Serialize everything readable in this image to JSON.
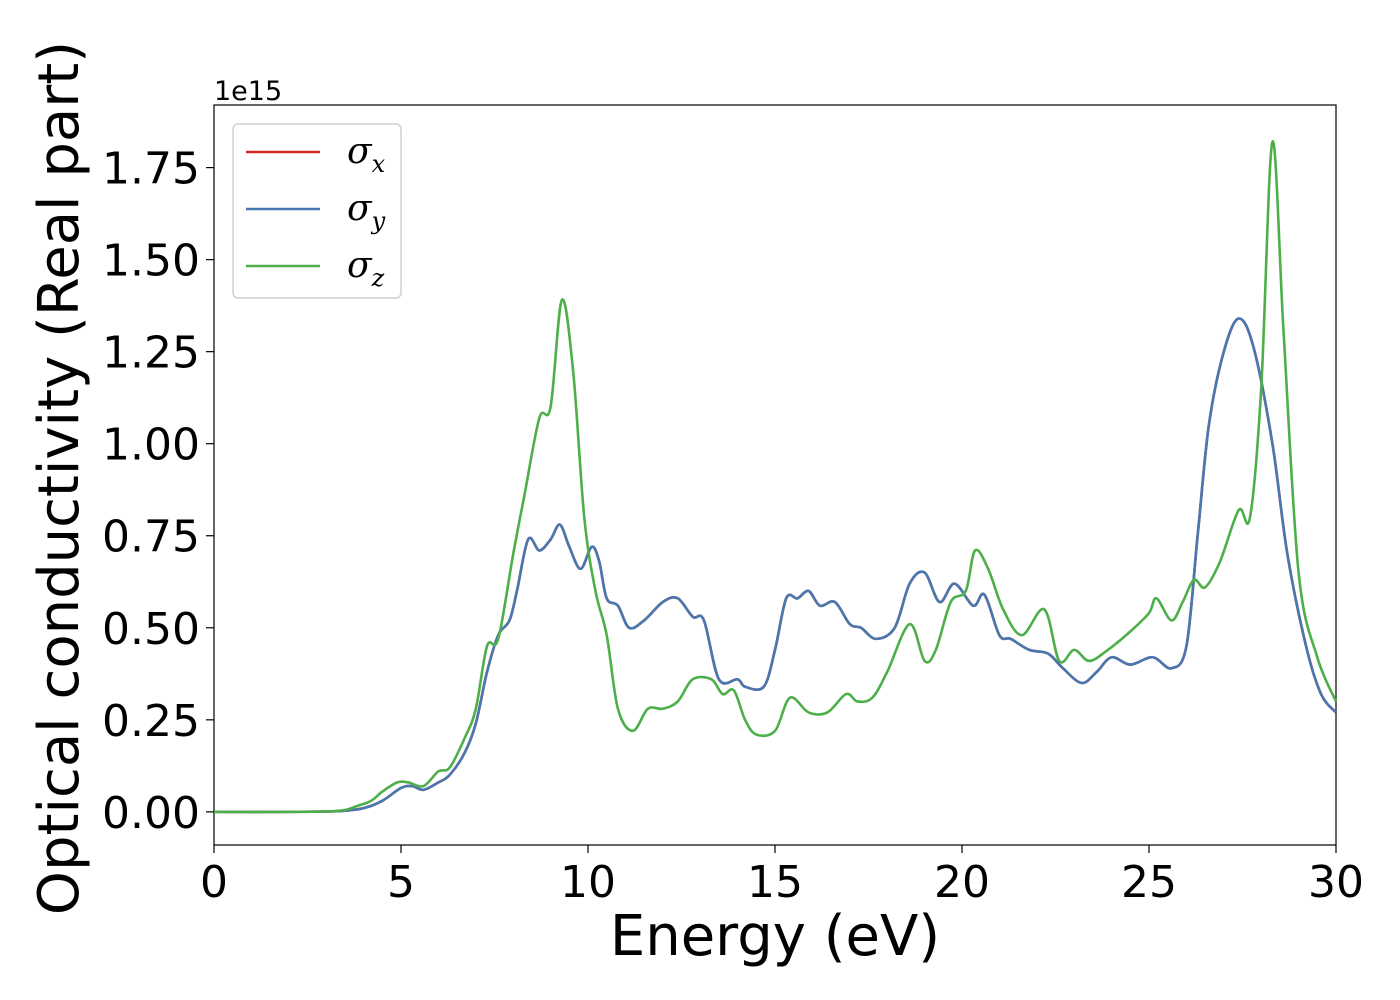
{
  "chart_data": {
    "type": "line",
    "xlabel": "Energy (eV)",
    "ylabel": "Optical conductivity (Real part)",
    "offset_text": "1e15",
    "xlim": [
      0,
      30
    ],
    "ylim": [
      -0.09,
      1.92
    ],
    "y_scale_factor": 1000000000000000.0,
    "x_ticks": [
      0,
      5,
      10,
      15,
      20,
      25,
      30
    ],
    "x_tick_labels": [
      "0",
      "5",
      "10",
      "15",
      "20",
      "25",
      "30"
    ],
    "y_ticks": [
      0.0,
      0.25,
      0.5,
      0.75,
      1.0,
      1.25,
      1.5,
      1.75
    ],
    "y_tick_labels": [
      "0.00",
      "0.25",
      "0.50",
      "0.75",
      "1.00",
      "1.25",
      "1.50",
      "1.75"
    ],
    "grid": false,
    "legend_position": "top-left",
    "legend": [
      {
        "symbol": "σ",
        "subscript": "x",
        "color": "#d62728"
      },
      {
        "symbol": "σ",
        "subscript": "y",
        "color": "#4878b0"
      },
      {
        "symbol": "σ",
        "subscript": "z",
        "color": "#4daf4a"
      }
    ],
    "series": [
      {
        "key": "sigma_x",
        "color": "#d62728",
        "points": [
          [
            0,
            0
          ],
          [
            2,
            0
          ],
          [
            3,
            0.001
          ],
          [
            3.5,
            0.003
          ],
          [
            4,
            0.01
          ],
          [
            4.5,
            0.03
          ],
          [
            5,
            0.065
          ],
          [
            5.3,
            0.07
          ],
          [
            5.6,
            0.06
          ],
          [
            6,
            0.08
          ],
          [
            6.3,
            0.1
          ],
          [
            6.7,
            0.16
          ],
          [
            7,
            0.24
          ],
          [
            7.3,
            0.38
          ],
          [
            7.6,
            0.48
          ],
          [
            7.9,
            0.52
          ],
          [
            8.1,
            0.6
          ],
          [
            8.4,
            0.74
          ],
          [
            8.7,
            0.71
          ],
          [
            9,
            0.74
          ],
          [
            9.25,
            0.78
          ],
          [
            9.5,
            0.72
          ],
          [
            9.8,
            0.66
          ],
          [
            10.1,
            0.72
          ],
          [
            10.3,
            0.68
          ],
          [
            10.5,
            0.58
          ],
          [
            10.8,
            0.56
          ],
          [
            11.1,
            0.5
          ],
          [
            11.5,
            0.52
          ],
          [
            12,
            0.57
          ],
          [
            12.4,
            0.58
          ],
          [
            12.8,
            0.53
          ],
          [
            13.1,
            0.52
          ],
          [
            13.5,
            0.36
          ],
          [
            14,
            0.36
          ],
          [
            14.2,
            0.34
          ],
          [
            14.7,
            0.34
          ],
          [
            15,
            0.44
          ],
          [
            15.3,
            0.58
          ],
          [
            15.6,
            0.58
          ],
          [
            15.9,
            0.6
          ],
          [
            16.2,
            0.56
          ],
          [
            16.6,
            0.57
          ],
          [
            17,
            0.51
          ],
          [
            17.3,
            0.5
          ],
          [
            17.7,
            0.47
          ],
          [
            18.2,
            0.5
          ],
          [
            18.6,
            0.62
          ],
          [
            19,
            0.65
          ],
          [
            19.4,
            0.57
          ],
          [
            19.8,
            0.62
          ],
          [
            20.3,
            0.56
          ],
          [
            20.6,
            0.59
          ],
          [
            21,
            0.48
          ],
          [
            21.3,
            0.47
          ],
          [
            21.8,
            0.44
          ],
          [
            22.3,
            0.43
          ],
          [
            22.7,
            0.39
          ],
          [
            23.2,
            0.35
          ],
          [
            23.6,
            0.38
          ],
          [
            24,
            0.42
          ],
          [
            24.5,
            0.4
          ],
          [
            25.1,
            0.42
          ],
          [
            25.6,
            0.39
          ],
          [
            26,
            0.45
          ],
          [
            26.3,
            0.75
          ],
          [
            26.6,
            1.05
          ],
          [
            27,
            1.25
          ],
          [
            27.4,
            1.34
          ],
          [
            27.8,
            1.26
          ],
          [
            28.3,
            1.0
          ],
          [
            28.7,
            0.7
          ],
          [
            29.2,
            0.45
          ],
          [
            29.6,
            0.32
          ],
          [
            30,
            0.27
          ]
        ]
      },
      {
        "key": "sigma_y",
        "color": "#4878b0",
        "points": [
          [
            0,
            0
          ],
          [
            2,
            0
          ],
          [
            3,
            0.001
          ],
          [
            3.5,
            0.003
          ],
          [
            4,
            0.01
          ],
          [
            4.5,
            0.03
          ],
          [
            5,
            0.065
          ],
          [
            5.3,
            0.07
          ],
          [
            5.6,
            0.06
          ],
          [
            6,
            0.08
          ],
          [
            6.3,
            0.1
          ],
          [
            6.7,
            0.16
          ],
          [
            7,
            0.24
          ],
          [
            7.3,
            0.38
          ],
          [
            7.6,
            0.48
          ],
          [
            7.9,
            0.52
          ],
          [
            8.1,
            0.6
          ],
          [
            8.4,
            0.74
          ],
          [
            8.7,
            0.71
          ],
          [
            9,
            0.74
          ],
          [
            9.25,
            0.78
          ],
          [
            9.5,
            0.72
          ],
          [
            9.8,
            0.66
          ],
          [
            10.1,
            0.72
          ],
          [
            10.3,
            0.68
          ],
          [
            10.5,
            0.58
          ],
          [
            10.8,
            0.56
          ],
          [
            11.1,
            0.5
          ],
          [
            11.5,
            0.52
          ],
          [
            12,
            0.57
          ],
          [
            12.4,
            0.58
          ],
          [
            12.8,
            0.53
          ],
          [
            13.1,
            0.52
          ],
          [
            13.5,
            0.36
          ],
          [
            14,
            0.36
          ],
          [
            14.2,
            0.34
          ],
          [
            14.7,
            0.34
          ],
          [
            15,
            0.44
          ],
          [
            15.3,
            0.58
          ],
          [
            15.6,
            0.58
          ],
          [
            15.9,
            0.6
          ],
          [
            16.2,
            0.56
          ],
          [
            16.6,
            0.57
          ],
          [
            17,
            0.51
          ],
          [
            17.3,
            0.5
          ],
          [
            17.7,
            0.47
          ],
          [
            18.2,
            0.5
          ],
          [
            18.6,
            0.62
          ],
          [
            19,
            0.65
          ],
          [
            19.4,
            0.57
          ],
          [
            19.8,
            0.62
          ],
          [
            20.3,
            0.56
          ],
          [
            20.6,
            0.59
          ],
          [
            21,
            0.48
          ],
          [
            21.3,
            0.47
          ],
          [
            21.8,
            0.44
          ],
          [
            22.3,
            0.43
          ],
          [
            22.7,
            0.39
          ],
          [
            23.2,
            0.35
          ],
          [
            23.6,
            0.38
          ],
          [
            24,
            0.42
          ],
          [
            24.5,
            0.4
          ],
          [
            25.1,
            0.42
          ],
          [
            25.6,
            0.39
          ],
          [
            26,
            0.45
          ],
          [
            26.3,
            0.75
          ],
          [
            26.6,
            1.05
          ],
          [
            27,
            1.25
          ],
          [
            27.4,
            1.34
          ],
          [
            27.8,
            1.26
          ],
          [
            28.3,
            1.0
          ],
          [
            28.7,
            0.7
          ],
          [
            29.2,
            0.45
          ],
          [
            29.6,
            0.32
          ],
          [
            30,
            0.27
          ]
        ]
      },
      {
        "key": "sigma_z",
        "color": "#4daf4a",
        "points": [
          [
            0,
            0
          ],
          [
            2,
            0
          ],
          [
            3,
            0.001
          ],
          [
            3.5,
            0.005
          ],
          [
            3.8,
            0.015
          ],
          [
            4.2,
            0.03
          ],
          [
            4.5,
            0.055
          ],
          [
            4.9,
            0.08
          ],
          [
            5.2,
            0.08
          ],
          [
            5.6,
            0.07
          ],
          [
            6,
            0.11
          ],
          [
            6.3,
            0.12
          ],
          [
            6.7,
            0.2
          ],
          [
            7,
            0.28
          ],
          [
            7.3,
            0.45
          ],
          [
            7.6,
            0.47
          ],
          [
            8,
            0.7
          ],
          [
            8.3,
            0.86
          ],
          [
            8.7,
            1.07
          ],
          [
            9,
            1.1
          ],
          [
            9.3,
            1.39
          ],
          [
            9.6,
            1.2
          ],
          [
            9.9,
            0.8
          ],
          [
            10.2,
            0.6
          ],
          [
            10.5,
            0.48
          ],
          [
            10.8,
            0.28
          ],
          [
            11.2,
            0.22
          ],
          [
            11.6,
            0.28
          ],
          [
            12,
            0.28
          ],
          [
            12.4,
            0.3
          ],
          [
            12.8,
            0.36
          ],
          [
            13.3,
            0.36
          ],
          [
            13.6,
            0.32
          ],
          [
            13.9,
            0.33
          ],
          [
            14.2,
            0.25
          ],
          [
            14.5,
            0.21
          ],
          [
            15,
            0.22
          ],
          [
            15.4,
            0.31
          ],
          [
            15.9,
            0.27
          ],
          [
            16.4,
            0.27
          ],
          [
            16.9,
            0.32
          ],
          [
            17.2,
            0.3
          ],
          [
            17.6,
            0.31
          ],
          [
            18,
            0.38
          ],
          [
            18.6,
            0.51
          ],
          [
            19,
            0.41
          ],
          [
            19.3,
            0.44
          ],
          [
            19.7,
            0.57
          ],
          [
            20.1,
            0.6
          ],
          [
            20.35,
            0.71
          ],
          [
            20.7,
            0.66
          ],
          [
            21.1,
            0.55
          ],
          [
            21.6,
            0.48
          ],
          [
            22.2,
            0.55
          ],
          [
            22.6,
            0.41
          ],
          [
            23,
            0.44
          ],
          [
            23.4,
            0.41
          ],
          [
            23.9,
            0.44
          ],
          [
            24.5,
            0.49
          ],
          [
            25,
            0.54
          ],
          [
            25.2,
            0.58
          ],
          [
            25.6,
            0.52
          ],
          [
            25.9,
            0.57
          ],
          [
            26.2,
            0.63
          ],
          [
            26.5,
            0.61
          ],
          [
            26.9,
            0.68
          ],
          [
            27.4,
            0.82
          ],
          [
            27.7,
            0.8
          ],
          [
            28,
            1.15
          ],
          [
            28.3,
            1.82
          ],
          [
            28.6,
            1.3
          ],
          [
            29,
            0.65
          ],
          [
            29.5,
            0.42
          ],
          [
            30,
            0.3
          ]
        ]
      }
    ]
  }
}
